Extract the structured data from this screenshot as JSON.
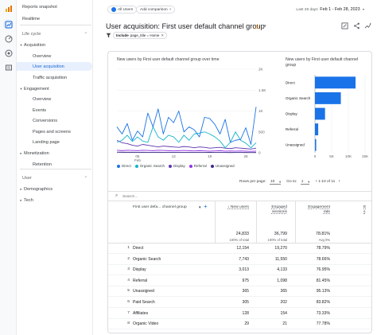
{
  "sidebar": {
    "items": [
      {
        "label": "Reports snapshot",
        "caret": "",
        "indent": 0,
        "active": false,
        "section": false
      },
      {
        "label": "Realtime",
        "caret": "",
        "indent": 0,
        "active": false,
        "section": false
      },
      {
        "label": "Life cycle",
        "caret": "",
        "indent": 0,
        "active": false,
        "section": true
      },
      {
        "label": "Acquisition",
        "caret": "▾",
        "indent": 0,
        "active": false,
        "section": false
      },
      {
        "label": "Overview",
        "caret": "",
        "indent": 1,
        "active": false,
        "section": false
      },
      {
        "label": "User acquisition",
        "caret": "",
        "indent": 1,
        "active": true,
        "section": false
      },
      {
        "label": "Traffic acquisition",
        "caret": "",
        "indent": 1,
        "active": false,
        "section": false
      },
      {
        "label": "Engagement",
        "caret": "▾",
        "indent": 0,
        "active": false,
        "section": false
      },
      {
        "label": "Overview",
        "caret": "",
        "indent": 1,
        "active": false,
        "section": false
      },
      {
        "label": "Events",
        "caret": "",
        "indent": 1,
        "active": false,
        "section": false
      },
      {
        "label": "Conversions",
        "caret": "",
        "indent": 1,
        "active": false,
        "section": false
      },
      {
        "label": "Pages and screens",
        "caret": "",
        "indent": 1,
        "active": false,
        "section": false
      },
      {
        "label": "Landing page",
        "caret": "",
        "indent": 1,
        "active": false,
        "section": false
      },
      {
        "label": "Monetization",
        "caret": "▸",
        "indent": 0,
        "active": false,
        "section": false
      },
      {
        "label": "Retention",
        "caret": "",
        "indent": 1,
        "active": false,
        "section": false
      },
      {
        "label": "User",
        "caret": "",
        "indent": 0,
        "active": false,
        "section": true
      },
      {
        "label": "Demographics",
        "caret": "▸",
        "indent": 0,
        "active": false,
        "section": false
      },
      {
        "label": "Tech",
        "caret": "▸",
        "indent": 0,
        "active": false,
        "section": false
      }
    ]
  },
  "header": {
    "comparison_chip": "All Users",
    "add_comparison": "Add comparison",
    "add_comparison_plus": "+",
    "date_prefix": "Last 28 days",
    "date_range": "Feb 1 - Feb 28, 2023",
    "title": "User acquisition: First user default channel group",
    "filter_include": "Include",
    "filter_value": "page_title = Home"
  },
  "line_chart": {
    "title": "New users by First user default channel group over time"
  },
  "bar_chart": {
    "title": "New users by First user default channel group"
  },
  "legend": [
    {
      "label": "Direct",
      "color": "#1a73e8"
    },
    {
      "label": "Organic Search",
      "color": "#12b5cb"
    },
    {
      "label": "Display",
      "color": "#5e35b1"
    },
    {
      "label": "Referral",
      "color": "#9334e6"
    },
    {
      "label": "Unassigned",
      "color": "#3f2a8c"
    }
  ],
  "chart_data": [
    {
      "type": "line",
      "title": "New users by First user default channel group over time",
      "x": [
        1,
        2,
        3,
        4,
        5,
        6,
        7,
        8,
        9,
        10,
        11,
        12,
        13,
        14,
        15,
        16,
        17,
        18,
        19,
        20,
        21,
        22,
        23,
        24,
        25,
        26,
        27,
        28
      ],
      "x_ticks": [
        {
          "x": 5,
          "label": "05",
          "sub": "Feb"
        },
        {
          "x": 12,
          "label": "12"
        },
        {
          "x": 19,
          "label": "19"
        },
        {
          "x": 26,
          "label": "26"
        }
      ],
      "ylim": [
        0,
        2000
      ],
      "y_ticks": [
        "0",
        "500",
        "1K",
        "1.5K",
        "2K"
      ],
      "series": [
        {
          "name": "Direct",
          "color": "#1a73e8",
          "values": [
            620,
            450,
            700,
            300,
            520,
            380,
            950,
            620,
            1050,
            450,
            850,
            720,
            1000,
            500,
            620,
            550,
            380,
            850,
            820,
            680,
            450,
            800,
            250,
            300,
            320,
            600,
            200,
            1100
          ]
        },
        {
          "name": "Organic Search",
          "color": "#12b5cb",
          "values": [
            250,
            300,
            420,
            270,
            380,
            280,
            250,
            620,
            380,
            300,
            420,
            380,
            250,
            420,
            300,
            450,
            470,
            500,
            450,
            380,
            280,
            120,
            250,
            500,
            300,
            230,
            120,
            240
          ]
        },
        {
          "name": "Display",
          "color": "#5e35b1",
          "values": [
            300,
            240,
            220,
            180,
            160,
            200,
            180,
            160,
            140,
            160,
            150,
            140,
            130,
            150,
            140,
            120,
            140,
            130,
            110,
            120,
            130,
            110,
            100,
            120,
            110,
            100,
            90,
            110
          ]
        },
        {
          "name": "Referral",
          "color": "#9334e6",
          "values": [
            60,
            50,
            60,
            55,
            50,
            60,
            55,
            50,
            60,
            55,
            50,
            45,
            50,
            55,
            50,
            45,
            50,
            45,
            40,
            45,
            50,
            40,
            45,
            40,
            45,
            40,
            35,
            40
          ]
        },
        {
          "name": "Unassigned",
          "color": "#3f2a8c",
          "values": [
            15,
            12,
            14,
            12,
            10,
            12,
            11,
            10,
            12,
            10,
            9,
            10,
            11,
            9,
            10,
            9,
            8,
            9,
            10,
            8,
            9,
            8,
            7,
            8,
            9,
            7,
            6,
            7
          ]
        }
      ]
    },
    {
      "type": "bar",
      "title": "New users by First user default channel group",
      "categories": [
        "Direct",
        "Organic Search",
        "Display",
        "Referral",
        "Unassigned"
      ],
      "values": [
        12154,
        7743,
        3013,
        975,
        365
      ],
      "xlim": [
        0,
        15000
      ],
      "x_ticks": [
        "0",
        "5K",
        "10K",
        "15K"
      ],
      "color": "#1a73e8"
    }
  ],
  "pager": {
    "rows_label": "Rows per page:",
    "rows_value": "10",
    "goto_label": "Go to:",
    "goto_value": "1",
    "range": "1-10 of 11"
  },
  "search": {
    "placeholder": "Search..."
  },
  "table": {
    "dimension_header": "First user defa... channel group",
    "headers": [
      {
        "line1": "↓ New users",
        "line2": ""
      },
      {
        "line1": "Engaged",
        "line2": "sessions"
      },
      {
        "line1": "Engagement",
        "line2": "rate"
      },
      {
        "line1": "E",
        "line2": "s"
      }
    ],
    "totals": [
      {
        "value": "24,833",
        "sub": "100% of total"
      },
      {
        "value": "36,799",
        "sub": "100% of total"
      },
      {
        "value": "78.81%",
        "sub": "Avg 0%"
      },
      {
        "value": "",
        "sub": ""
      }
    ],
    "rows": [
      {
        "idx": "1",
        "name": "Direct",
        "c1": "12,154",
        "c2": "19,270",
        "c3": "78.79%"
      },
      {
        "idx": "2",
        "name": "Organic Search",
        "c1": "7,743",
        "c2": "11,550",
        "c3": "78.66%"
      },
      {
        "idx": "3",
        "name": "Display",
        "c1": "3,013",
        "c2": "4,133",
        "c3": "76.95%"
      },
      {
        "idx": "4",
        "name": "Referral",
        "c1": "975",
        "c2": "1,098",
        "c3": "81.45%"
      },
      {
        "idx": "5",
        "name": "Unassigned",
        "c1": "365",
        "c2": "365",
        "c3": "95.13%"
      },
      {
        "idx": "6",
        "name": "Paid Search",
        "c1": "305",
        "c2": "202",
        "c3": "83.82%"
      },
      {
        "idx": "7",
        "name": "Affiliates",
        "c1": "128",
        "c2": "154",
        "c3": "73.33%"
      },
      {
        "idx": "8",
        "name": "Organic Video",
        "c1": "29",
        "c2": "21",
        "c3": "77.78%"
      },
      {
        "idx": "9",
        "name": "Organic Social",
        "c1": "18",
        "c2": "19",
        "c3": "82.61%"
      }
    ]
  }
}
